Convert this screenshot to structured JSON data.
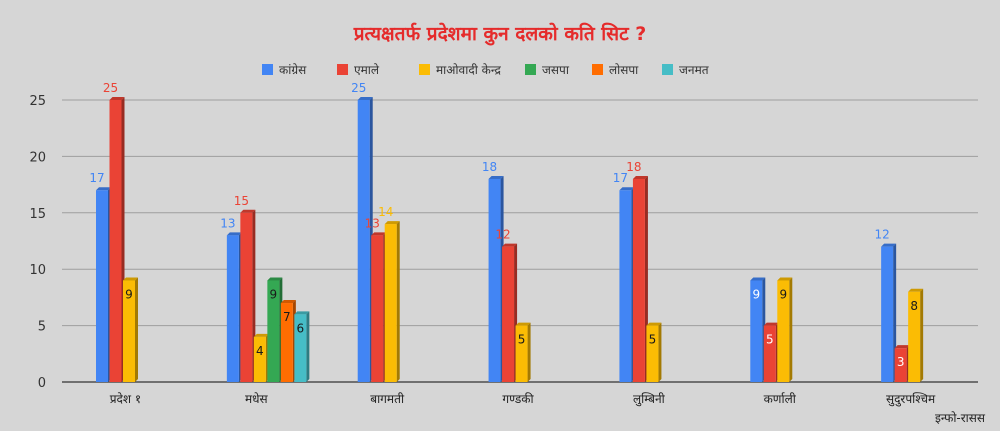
{
  "chart_data": {
    "type": "bar",
    "title": "प्रत्यक्षतर्फ प्रदेशमा कुन दलको कति सिट ?",
    "xlabel": "",
    "ylabel": "",
    "categories": [
      "प्रदेश १",
      "मधेस",
      "बागमती",
      "गण्डकी",
      "लुम्बिनी",
      "कर्णाली",
      "सुदुरपश्चिम"
    ],
    "series": [
      {
        "name": "कांग्रेस",
        "color": "#4285f4",
        "values": [
          17,
          13,
          25,
          18,
          17,
          9,
          12
        ]
      },
      {
        "name": "एमाले",
        "color": "#ea4335",
        "values": [
          25,
          15,
          13,
          12,
          18,
          5,
          3
        ]
      },
      {
        "name": "माओवादी केन्द्र",
        "color": "#fbbc04",
        "values": [
          9,
          4,
          14,
          5,
          5,
          9,
          8
        ]
      },
      {
        "name": "जसपा",
        "color": "#34a853",
        "values": [
          null,
          9,
          null,
          null,
          null,
          null,
          null
        ]
      },
      {
        "name": "लोसपा",
        "color": "#ff6d01",
        "values": [
          null,
          7,
          null,
          null,
          null,
          null,
          null
        ]
      },
      {
        "name": "जनमत",
        "color": "#46bdc6",
        "values": [
          null,
          6,
          null,
          null,
          null,
          null,
          null
        ]
      }
    ],
    "ylim": [
      0,
      25
    ],
    "yticks": [
      0,
      5,
      10,
      15,
      20,
      25
    ],
    "grid": true,
    "legend": "top-center"
  },
  "source_label": "इन्फो-रासस"
}
